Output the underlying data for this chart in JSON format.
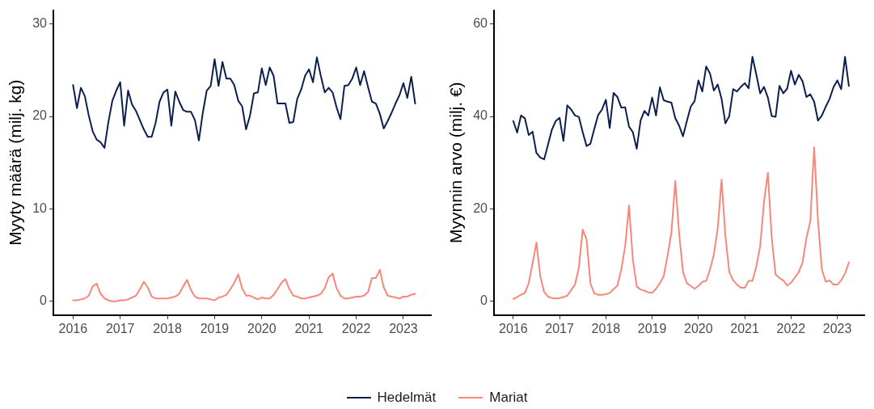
{
  "chart_data": [
    {
      "type": "line",
      "ylabel": "Myyty määrä (milj. kg)",
      "legend": "bottom",
      "grid": false,
      "marker": "none",
      "line_style": "solid",
      "x": [
        "2016-01",
        "2016-02",
        "2016-03",
        "2016-04",
        "2016-05",
        "2016-06",
        "2016-07",
        "2016-08",
        "2016-09",
        "2016-10",
        "2016-11",
        "2016-12",
        "2017-01",
        "2017-02",
        "2017-03",
        "2017-04",
        "2017-05",
        "2017-06",
        "2017-07",
        "2017-08",
        "2017-09",
        "2017-10",
        "2017-11",
        "2017-12",
        "2018-01",
        "2018-02",
        "2018-03",
        "2018-04",
        "2018-05",
        "2018-06",
        "2018-07",
        "2018-08",
        "2018-09",
        "2018-10",
        "2018-11",
        "2018-12",
        "2019-01",
        "2019-02",
        "2019-03",
        "2019-04",
        "2019-05",
        "2019-06",
        "2019-07",
        "2019-08",
        "2019-09",
        "2019-10",
        "2019-11",
        "2019-12",
        "2020-01",
        "2020-02",
        "2020-03",
        "2020-04",
        "2020-05",
        "2020-06",
        "2020-07",
        "2020-08",
        "2020-09",
        "2020-10",
        "2020-11",
        "2020-12",
        "2021-01",
        "2021-02",
        "2021-03",
        "2021-04",
        "2021-05",
        "2021-06",
        "2021-07",
        "2021-08",
        "2021-09",
        "2021-10",
        "2021-11",
        "2021-12",
        "2022-01",
        "2022-02",
        "2022-03",
        "2022-04",
        "2022-05",
        "2022-06",
        "2022-07",
        "2022-08",
        "2022-09",
        "2022-10",
        "2022-11",
        "2022-12",
        "2023-01",
        "2023-02",
        "2023-03",
        "2023-04"
      ],
      "xlim": [
        "2015-08",
        "2023-08"
      ],
      "xticks": [
        "2016",
        "2017",
        "2018",
        "2019",
        "2020",
        "2021",
        "2022",
        "2023"
      ],
      "ylim": [
        -1.5,
        31.5
      ],
      "yticks": [
        0,
        10,
        20,
        30
      ],
      "series": [
        {
          "name": "Hedelmät",
          "color": "#0b1f4f",
          "values": [
            23.4,
            20.9,
            23.1,
            22.2,
            20.1,
            18.4,
            17.5,
            17.2,
            16.6,
            19.4,
            21.7,
            22.8,
            23.7,
            19.0,
            22.8,
            21.3,
            20.6,
            19.6,
            18.6,
            17.8,
            17.8,
            19.3,
            21.6,
            22.6,
            22.9,
            19.0,
            22.7,
            21.6,
            20.7,
            20.5,
            20.5,
            19.6,
            17.4,
            20.4,
            22.8,
            23.3,
            26.2,
            23.3,
            25.9,
            24.1,
            24.1,
            23.4,
            21.7,
            21.1,
            18.6,
            20.1,
            22.5,
            22.6,
            25.2,
            23.4,
            25.3,
            24.4,
            21.4,
            21.4,
            21.4,
            19.3,
            19.4,
            21.9,
            22.9,
            24.4,
            25.1,
            23.7,
            26.4,
            24.4,
            22.6,
            23.1,
            22.6,
            21.0,
            19.7,
            23.3,
            23.4,
            24.1,
            25.3,
            23.4,
            24.9,
            23.2,
            21.6,
            21.4,
            20.3,
            18.7,
            19.5,
            20.4,
            21.4,
            22.3,
            23.6,
            22.0,
            24.3,
            21.4
          ]
        },
        {
          "name": "Mariat",
          "color": "#f8877a",
          "values": [
            0.1,
            0.1,
            0.2,
            0.3,
            0.6,
            1.6,
            1.9,
            0.8,
            0.3,
            0.1,
            0.0,
            0.0,
            0.1,
            0.1,
            0.2,
            0.4,
            0.6,
            1.3,
            2.1,
            1.5,
            0.5,
            0.3,
            0.3,
            0.3,
            0.3,
            0.4,
            0.5,
            0.8,
            1.6,
            2.3,
            1.2,
            0.5,
            0.3,
            0.3,
            0.3,
            0.2,
            0.1,
            0.4,
            0.5,
            0.7,
            1.3,
            2.0,
            2.9,
            1.4,
            0.6,
            0.6,
            0.4,
            0.2,
            0.4,
            0.3,
            0.3,
            0.7,
            1.3,
            2.0,
            2.4,
            1.3,
            0.6,
            0.5,
            0.3,
            0.3,
            0.4,
            0.5,
            0.6,
            0.8,
            1.4,
            2.6,
            3.0,
            1.4,
            0.6,
            0.3,
            0.3,
            0.4,
            0.5,
            0.5,
            0.6,
            1.0,
            2.5,
            2.5,
            3.4,
            1.5,
            0.6,
            0.5,
            0.4,
            0.3,
            0.5,
            0.5,
            0.7,
            0.8
          ]
        }
      ]
    },
    {
      "type": "line",
      "ylabel": "Myynnin arvo (milj. €)",
      "grid": false,
      "marker": "none",
      "line_style": "solid",
      "x": [
        "2016-01",
        "2016-02",
        "2016-03",
        "2016-04",
        "2016-05",
        "2016-06",
        "2016-07",
        "2016-08",
        "2016-09",
        "2016-10",
        "2016-11",
        "2016-12",
        "2017-01",
        "2017-02",
        "2017-03",
        "2017-04",
        "2017-05",
        "2017-06",
        "2017-07",
        "2017-08",
        "2017-09",
        "2017-10",
        "2017-11",
        "2017-12",
        "2018-01",
        "2018-02",
        "2018-03",
        "2018-04",
        "2018-05",
        "2018-06",
        "2018-07",
        "2018-08",
        "2018-09",
        "2018-10",
        "2018-11",
        "2018-12",
        "2019-01",
        "2019-02",
        "2019-03",
        "2019-04",
        "2019-05",
        "2019-06",
        "2019-07",
        "2019-08",
        "2019-09",
        "2019-10",
        "2019-11",
        "2019-12",
        "2020-01",
        "2020-02",
        "2020-03",
        "2020-04",
        "2020-05",
        "2020-06",
        "2020-07",
        "2020-08",
        "2020-09",
        "2020-10",
        "2020-11",
        "2020-12",
        "2021-01",
        "2021-02",
        "2021-03",
        "2021-04",
        "2021-05",
        "2021-06",
        "2021-07",
        "2021-08",
        "2021-09",
        "2021-10",
        "2021-11",
        "2021-12",
        "2022-01",
        "2022-02",
        "2022-03",
        "2022-04",
        "2022-05",
        "2022-06",
        "2022-07",
        "2022-08",
        "2022-09",
        "2022-10",
        "2022-11",
        "2022-12",
        "2023-01",
        "2023-02",
        "2023-03",
        "2023-04"
      ],
      "xlim": [
        "2015-08",
        "2023-08"
      ],
      "xticks": [
        "2016",
        "2017",
        "2018",
        "2019",
        "2020",
        "2021",
        "2022",
        "2023"
      ],
      "ylim": [
        -3,
        63
      ],
      "yticks": [
        0,
        20,
        40,
        60
      ],
      "series": [
        {
          "name": "Hedelmät",
          "color": "#0b1f4f",
          "values": [
            39.0,
            36.5,
            40.2,
            39.6,
            36.0,
            36.7,
            32.1,
            31.1,
            30.7,
            33.9,
            37.1,
            39.0,
            39.7,
            34.7,
            42.4,
            41.5,
            40.2,
            39.9,
            36.6,
            33.6,
            34.1,
            37.3,
            40.3,
            41.5,
            43.6,
            37.5,
            45.1,
            44.2,
            41.9,
            42.0,
            37.8,
            36.6,
            33.0,
            39.1,
            41.2,
            40.2,
            44.1,
            40.2,
            46.3,
            43.5,
            43.2,
            43.0,
            39.6,
            38.0,
            35.7,
            39.0,
            42.1,
            43.3,
            47.8,
            45.4,
            50.8,
            49.3,
            45.6,
            46.9,
            43.8,
            38.5,
            40.1,
            45.9,
            45.4,
            46.4,
            47.2,
            46.1,
            52.9,
            49.1,
            45.0,
            46.4,
            44.1,
            40.1,
            39.9,
            46.6,
            45.0,
            46.0,
            49.9,
            46.9,
            49.0,
            47.6,
            44.2,
            44.8,
            43.2,
            39.1,
            40.2,
            42.1,
            43.8,
            46.3,
            47.8,
            45.9,
            52.9,
            46.6
          ]
        },
        {
          "name": "Mariat",
          "color": "#f8877a",
          "values": [
            0.5,
            0.9,
            1.4,
            1.8,
            3.9,
            8.2,
            12.7,
            5.4,
            2.0,
            1.0,
            0.7,
            0.6,
            0.7,
            0.9,
            1.2,
            2.4,
            3.6,
            7.3,
            15.5,
            13.4,
            3.8,
            1.7,
            1.4,
            1.4,
            1.5,
            1.8,
            2.6,
            3.4,
            6.9,
            11.9,
            20.7,
            9.0,
            3.2,
            2.5,
            2.3,
            1.9,
            1.8,
            2.7,
            3.9,
            5.4,
            9.9,
            14.9,
            26.0,
            14.6,
            6.3,
            3.9,
            3.3,
            2.7,
            3.3,
            4.2,
            4.4,
            6.9,
            10.1,
            15.8,
            26.3,
            14.0,
            6.3,
            4.5,
            3.6,
            2.9,
            2.9,
            4.4,
            4.4,
            7.5,
            11.9,
            21.5,
            27.8,
            13.7,
            5.8,
            5.0,
            4.5,
            3.4,
            4.0,
            5.1,
            6.3,
            8.4,
            13.7,
            17.3,
            33.3,
            17.3,
            6.9,
            4.2,
            4.5,
            3.6,
            3.6,
            4.5,
            6.0,
            8.4
          ]
        }
      ]
    }
  ]
}
